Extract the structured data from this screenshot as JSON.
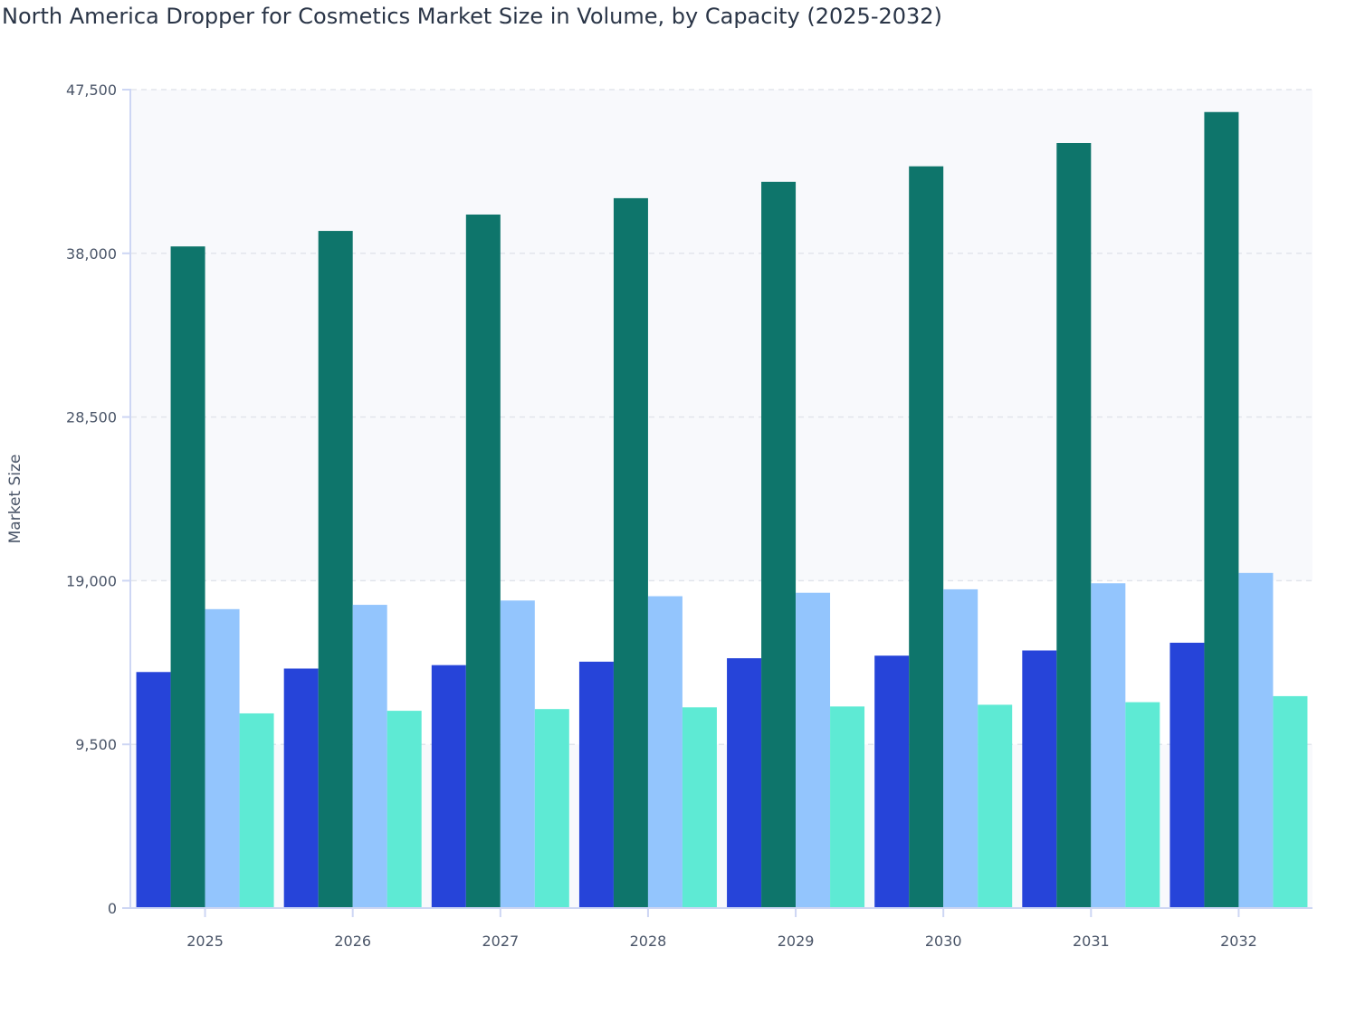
{
  "chart_data": {
    "type": "bar",
    "title": "North America Dropper for Cosmetics Market Size in Volume, by Capacity (2025-2032)",
    "xlabel": "",
    "ylabel": "Market Size",
    "ylim": [
      0,
      47500
    ],
    "yticks": [
      "0",
      "9,500",
      "19,000",
      "28,500",
      "38,000",
      "47,500"
    ],
    "ytick_values": [
      0,
      9500,
      19000,
      28500,
      38000,
      47500
    ],
    "grid": true,
    "legend": "none",
    "categories": [
      "2025",
      "2026",
      "2027",
      "2028",
      "2029",
      "2030",
      "2031",
      "2032"
    ],
    "series": [
      {
        "color": "#2644d9",
        "values": [
          13700,
          13900,
          14100,
          14300,
          14500,
          14650,
          14950,
          15400
        ]
      },
      {
        "color": "#0e756b",
        "values": [
          38400,
          39300,
          40250,
          41200,
          42150,
          43050,
          44400,
          46200
        ]
      },
      {
        "color": "#93c5fd",
        "values": [
          17350,
          17600,
          17850,
          18100,
          18300,
          18500,
          18850,
          19450
        ]
      },
      {
        "color": "#5eead4",
        "values": [
          11300,
          11450,
          11550,
          11650,
          11700,
          11800,
          11950,
          12300
        ]
      }
    ]
  }
}
